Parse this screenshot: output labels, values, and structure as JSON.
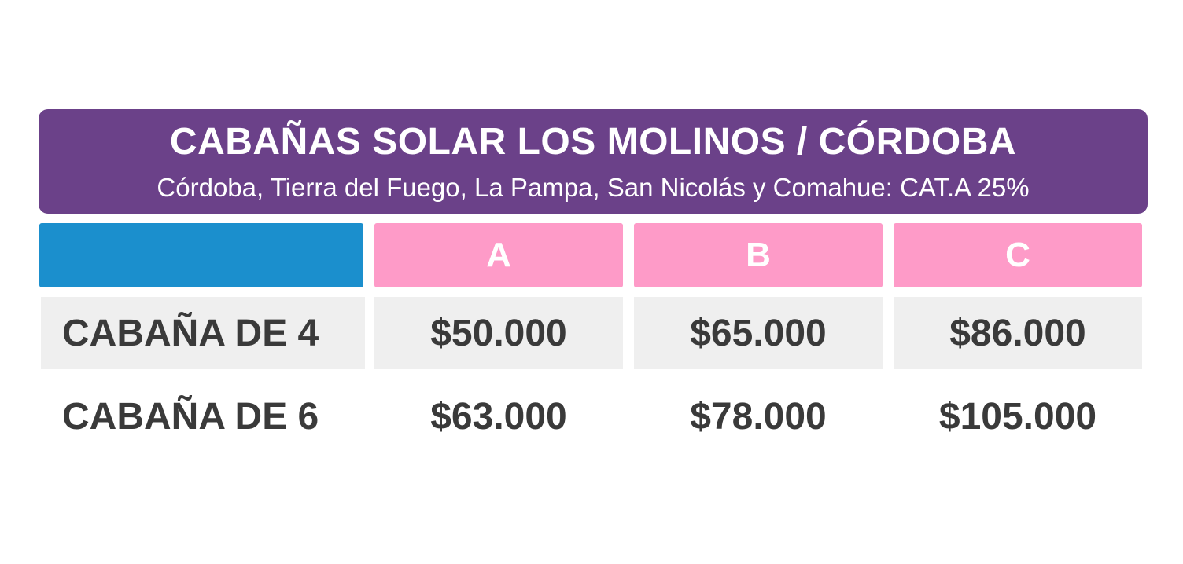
{
  "header": {
    "title": "CABAÑAS SOLAR LOS MOLINOS / CÓRDOBA",
    "subtitle": "Córdoba, Tierra del Fuego, La Pampa, San Nicolás y Comahue: CAT.A 25%"
  },
  "table": {
    "columns": [
      "A",
      "B",
      "C"
    ],
    "rows": [
      {
        "label": "CABAÑA DE 4",
        "values": [
          "$50.000",
          "$65.000",
          "$86.000"
        ]
      },
      {
        "label": "CABAÑA DE 6",
        "values": [
          "$63.000",
          "$78.000",
          "$105.000"
        ]
      }
    ]
  },
  "colors": {
    "header_bg": "#6b4189",
    "corner_bg": "#1b8fcd",
    "column_header_bg": "#fe9bc8",
    "row_shade": "#efefef",
    "text": "#3a3a3a"
  }
}
